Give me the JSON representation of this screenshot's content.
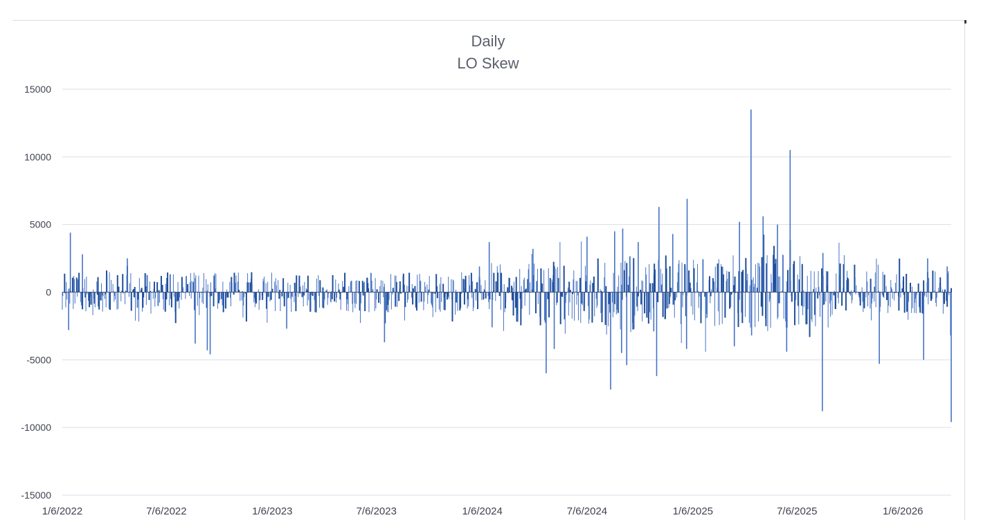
{
  "chart_data": {
    "type": "bar",
    "title": "Daily",
    "subtitle": "LO Skew",
    "xlabel": "",
    "ylabel": "",
    "ylim": [
      -15000,
      15000
    ],
    "yticks": [
      15000,
      10000,
      5000,
      0,
      -5000,
      -10000,
      -15000
    ],
    "ytick_labels": [
      "15000",
      "10000",
      "5000",
      "0",
      "-5000",
      "-10000",
      "-15000"
    ],
    "xlim": [
      "2022-01-06",
      "2026-03-31"
    ],
    "xticks": [
      "2022-01-06",
      "2022-07-06",
      "2023-01-06",
      "2023-07-06",
      "2024-01-06",
      "2024-07-06",
      "2025-01-06",
      "2025-07-06",
      "2026-01-06"
    ],
    "xtick_labels": [
      "1/6/2022",
      "7/6/2022",
      "1/6/2023",
      "7/6/2023",
      "1/6/2024",
      "7/6/2024",
      "1/6/2025",
      "7/6/2025",
      "1/6/2026"
    ],
    "grid": true,
    "legend": false,
    "bar_color": "#4472c4",
    "bar_color_dark": "#1f4e9b",
    "notable_points": [
      {
        "date": "2022-01-20",
        "value": 4400
      },
      {
        "date": "2022-01-17",
        "value": -2800
      },
      {
        "date": "2022-02-10",
        "value": 2800
      },
      {
        "date": "2022-04-29",
        "value": 2500
      },
      {
        "date": "2022-08-25",
        "value": -3800
      },
      {
        "date": "2022-09-15",
        "value": -4300
      },
      {
        "date": "2022-09-20",
        "value": -4600
      },
      {
        "date": "2023-01-31",
        "value": -2700
      },
      {
        "date": "2023-07-20",
        "value": -3700
      },
      {
        "date": "2024-01-01",
        "value": 1900
      },
      {
        "date": "2024-01-18",
        "value": 3700
      },
      {
        "date": "2024-01-23",
        "value": -2600
      },
      {
        "date": "2024-04-03",
        "value": 3200
      },
      {
        "date": "2024-04-26",
        "value": -6000
      },
      {
        "date": "2024-05-10",
        "value": -4200
      },
      {
        "date": "2024-07-06",
        "value": 4100
      },
      {
        "date": "2024-08-16",
        "value": -7200
      },
      {
        "date": "2024-08-23",
        "value": 4500
      },
      {
        "date": "2024-09-04",
        "value": -4500
      },
      {
        "date": "2024-09-06",
        "value": 4700
      },
      {
        "date": "2024-09-13",
        "value": -5400
      },
      {
        "date": "2024-10-03",
        "value": 3700
      },
      {
        "date": "2024-10-30",
        "value": -2900
      },
      {
        "date": "2024-11-04",
        "value": -6200
      },
      {
        "date": "2024-11-08",
        "value": 6300
      },
      {
        "date": "2024-11-08",
        "value": 3900
      },
      {
        "date": "2024-12-02",
        "value": 4300
      },
      {
        "date": "2024-12-26",
        "value": -4200
      },
      {
        "date": "2024-12-27",
        "value": 6900
      },
      {
        "date": "2025-03-19",
        "value": -4000
      },
      {
        "date": "2025-03-28",
        "value": 5200
      },
      {
        "date": "2025-04-17",
        "value": 13500
      },
      {
        "date": "2025-04-18",
        "value": -3200
      },
      {
        "date": "2025-05-08",
        "value": 5600
      },
      {
        "date": "2025-06-02",
        "value": 5000
      },
      {
        "date": "2025-06-18",
        "value": -4400
      },
      {
        "date": "2025-06-24",
        "value": 10500
      },
      {
        "date": "2025-08-19",
        "value": -8800
      },
      {
        "date": "2025-08-20",
        "value": 2900
      },
      {
        "date": "2025-11-26",
        "value": -5300
      },
      {
        "date": "2026-02-11",
        "value": -5000
      },
      {
        "date": "2026-02-18",
        "value": 2500
      },
      {
        "date": "2026-03-24",
        "value": 1900
      },
      {
        "date": "2026-03-31",
        "value": -9600
      },
      {
        "date": "2026-03-30",
        "value": -3200
      }
    ]
  }
}
